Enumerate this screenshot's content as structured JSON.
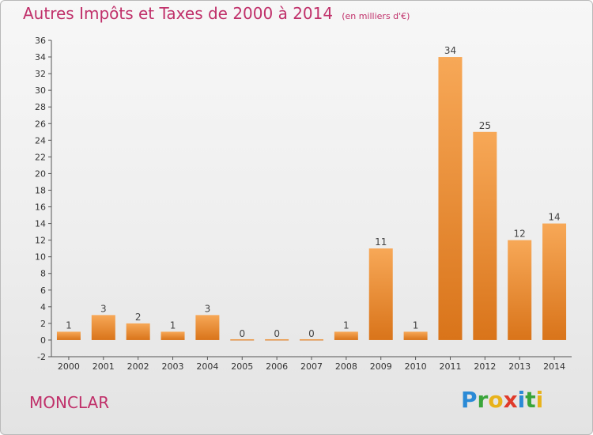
{
  "title": "Autres Impôts et Taxes de 2000 à 2014",
  "unit": "(en milliers d'€)",
  "town": "MONCLAR",
  "brand": {
    "letters": [
      {
        "char": "P",
        "color": "#2a8ad6"
      },
      {
        "char": "r",
        "color": "#3aa53a"
      },
      {
        "char": "o",
        "color": "#e8b21a"
      },
      {
        "char": "x",
        "color": "#e03a2a"
      },
      {
        "char": "i",
        "color": "#2a8ad6"
      },
      {
        "char": "t",
        "color": "#3aa53a"
      },
      {
        "char": "i",
        "color": "#e8b21a"
      }
    ]
  },
  "colors": {
    "title": "#c0306a",
    "bar_light": "#f7a857",
    "bar_dark": "#d9741a",
    "axis": "#555555"
  },
  "chart_data": {
    "type": "bar",
    "categories": [
      "2000",
      "2001",
      "2002",
      "2003",
      "2004",
      "2005",
      "2006",
      "2007",
      "2008",
      "2009",
      "2010",
      "2011",
      "2012",
      "2013",
      "2014"
    ],
    "values": [
      1,
      3,
      2,
      1,
      3,
      0,
      0,
      0,
      1,
      11,
      1,
      34,
      25,
      12,
      14
    ],
    "ylim": [
      -2,
      36
    ],
    "ytick_step": 2,
    "grid": false,
    "legend": "none"
  }
}
